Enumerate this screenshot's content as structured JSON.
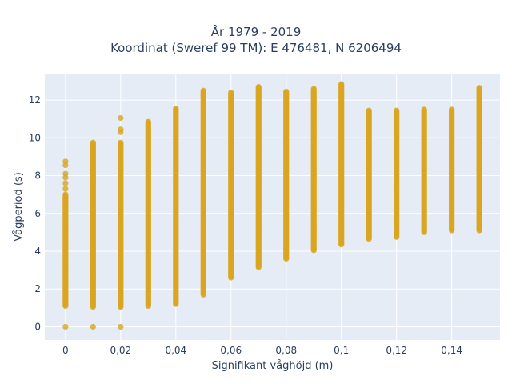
{
  "chart_data": {
    "type": "scatter",
    "title_line1": "År 1979 - 2019",
    "title_line2": "Koordinat (Sweref 99 TM): E 476481, N 6206494",
    "xlabel": "Signifikant våghöjd (m)",
    "ylabel": "Vågperiod (s)",
    "xlim": [
      -0.0075,
      0.1575
    ],
    "ylim": [
      -0.7,
      13.4
    ],
    "grid": true,
    "marker_color": "#DAA520",
    "x_ticks": [
      {
        "value": 0,
        "label": "0"
      },
      {
        "value": 0.02,
        "label": "0,02"
      },
      {
        "value": 0.04,
        "label": "0,04"
      },
      {
        "value": 0.06,
        "label": "0,06"
      },
      {
        "value": 0.08,
        "label": "0,08"
      },
      {
        "value": 0.1,
        "label": "0,1"
      },
      {
        "value": 0.12,
        "label": "0,12"
      },
      {
        "value": 0.14,
        "label": "0,14"
      }
    ],
    "y_ticks": [
      {
        "value": 0,
        "label": "0"
      },
      {
        "value": 2,
        "label": "2"
      },
      {
        "value": 4,
        "label": "4"
      },
      {
        "value": 6,
        "label": "6"
      },
      {
        "value": 8,
        "label": "8"
      },
      {
        "value": 10,
        "label": "10"
      },
      {
        "value": 12,
        "label": "12"
      }
    ],
    "columns": [
      {
        "x": 0.0,
        "min": 1.1,
        "max": 7.0,
        "extra": [
          0.0,
          7.3,
          7.6,
          7.9,
          8.1,
          8.55,
          8.75
        ]
      },
      {
        "x": 0.01,
        "min": 1.05,
        "max": 9.75,
        "extra": [
          0.0
        ]
      },
      {
        "x": 0.02,
        "min": 1.05,
        "max": 9.75,
        "extra": [
          0.0,
          10.3,
          10.45,
          11.05
        ]
      },
      {
        "x": 0.03,
        "min": 1.1,
        "max": 10.85,
        "extra": []
      },
      {
        "x": 0.04,
        "min": 1.2,
        "max": 11.55,
        "extra": []
      },
      {
        "x": 0.05,
        "min": 1.7,
        "max": 12.5,
        "extra": []
      },
      {
        "x": 0.06,
        "min": 2.6,
        "max": 12.4,
        "extra": []
      },
      {
        "x": 0.07,
        "min": 3.15,
        "max": 12.7,
        "extra": []
      },
      {
        "x": 0.08,
        "min": 3.6,
        "max": 12.45,
        "extra": []
      },
      {
        "x": 0.09,
        "min": 4.05,
        "max": 12.6,
        "extra": []
      },
      {
        "x": 0.1,
        "min": 4.35,
        "max": 12.85,
        "extra": []
      },
      {
        "x": 0.11,
        "min": 4.65,
        "max": 11.45,
        "extra": []
      },
      {
        "x": 0.12,
        "min": 4.75,
        "max": 11.45,
        "extra": []
      },
      {
        "x": 0.13,
        "min": 5.0,
        "max": 11.5,
        "extra": []
      },
      {
        "x": 0.14,
        "min": 5.1,
        "max": 11.5,
        "extra": []
      },
      {
        "x": 0.15,
        "min": 5.1,
        "max": 12.65,
        "extra": []
      }
    ]
  }
}
